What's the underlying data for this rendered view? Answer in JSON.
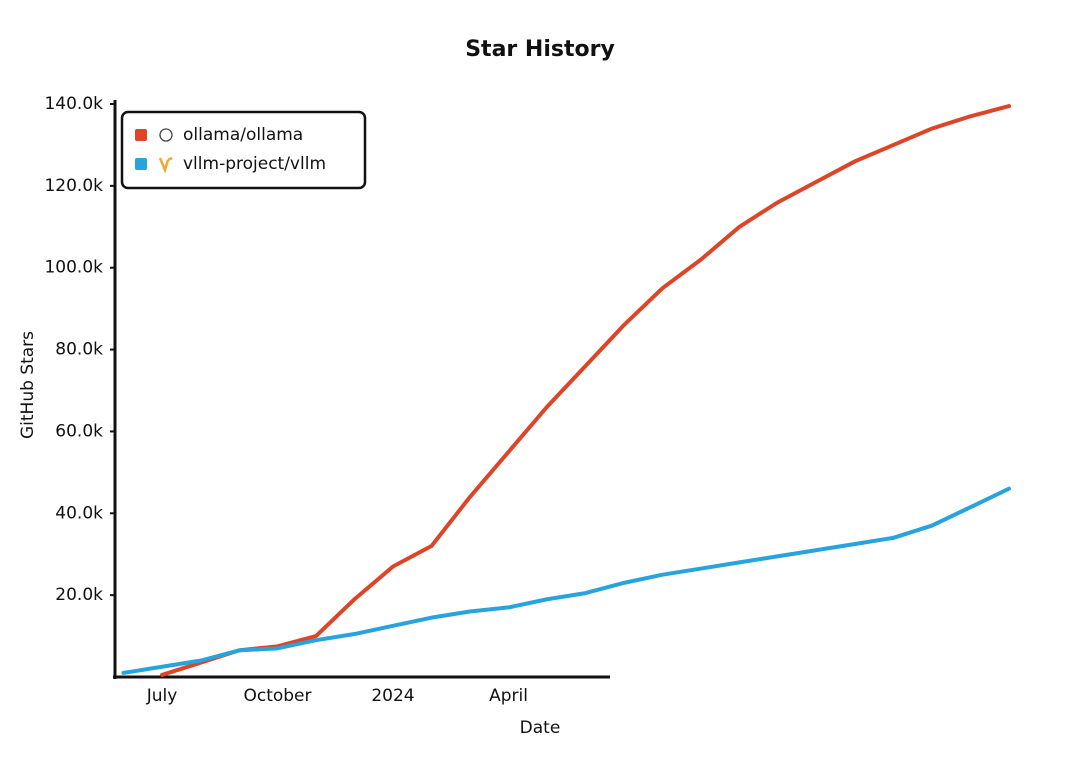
{
  "chart_data": {
    "type": "line",
    "title": "Star History",
    "x_label": "Date",
    "y_label": "GitHub Stars",
    "categories": [
      null,
      "July",
      null,
      null,
      "October",
      null,
      null,
      "2024",
      null,
      null,
      "April",
      null,
      null,
      null,
      null,
      null,
      null,
      null,
      null,
      null,
      null,
      null,
      null,
      null
    ],
    "series": [
      {
        "name": "ollama/ollama",
        "color": "#dd4528",
        "values": [
          null,
          0.5,
          3.5,
          6.5,
          7.5,
          10,
          19,
          27,
          32,
          44,
          55,
          66,
          76,
          86,
          95,
          102,
          110,
          116,
          121,
          126,
          130,
          134,
          137,
          139.5
        ]
      },
      {
        "name": "vllm-project/vllm",
        "color": "#28a3dd",
        "values": [
          1,
          2.5,
          4,
          6.5,
          7,
          9,
          10.5,
          12.5,
          14.5,
          16,
          17,
          19,
          20.5,
          23,
          25,
          26.5,
          28,
          29.5,
          31,
          32.5,
          34,
          37,
          41.5,
          46
        ]
      }
    ],
    "ylim": [
      0,
      140
    ],
    "yticks": [
      {
        "value": 20,
        "label": "20.0k"
      },
      {
        "value": 40,
        "label": "40.0k"
      },
      {
        "value": 60,
        "label": "60.0k"
      },
      {
        "value": 80,
        "label": "80.0k"
      },
      {
        "value": 100,
        "label": "100.0k"
      },
      {
        "value": 120,
        "label": "120.0k"
      },
      {
        "value": 140,
        "label": "140.0k"
      }
    ],
    "legend": "top-left"
  }
}
